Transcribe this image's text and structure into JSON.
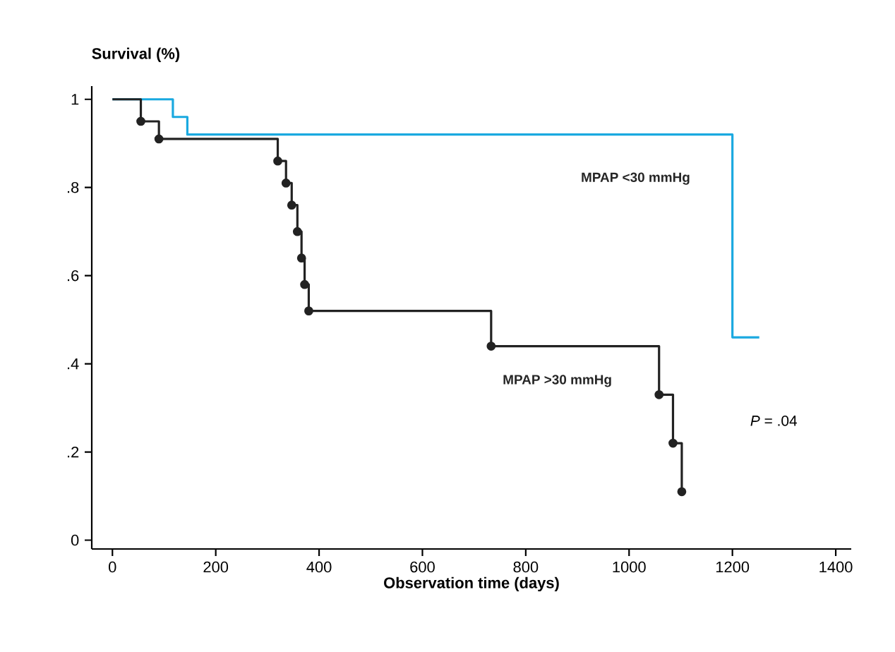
{
  "chart_data": {
    "type": "step",
    "ylabel": "Survival (%)",
    "xlabel": "Observation time (days)",
    "xlim": [
      -40,
      1430
    ],
    "ylim": [
      -0.02,
      1.03
    ],
    "xticks": [
      0,
      200,
      400,
      600,
      800,
      1000,
      1200,
      1400
    ],
    "yticks": [
      {
        "value": 0,
        "label": "0"
      },
      {
        "value": 0.2,
        "label": ".2"
      },
      {
        "value": 0.4,
        "label": ".4"
      },
      {
        "value": 0.6,
        "label": ".6"
      },
      {
        "value": 0.8,
        "label": ".8"
      },
      {
        "value": 1,
        "label": "1"
      }
    ],
    "annotations": [
      "*P* = .04"
    ],
    "grid": false,
    "line_style": "solid",
    "series": [
      {
        "name": "MPAP <30 mmHg",
        "color": "#1aa9e0",
        "marker": "none",
        "x": [
          0,
          117,
          145,
          1200,
          1252
        ],
        "values": [
          1,
          0.96,
          0.92,
          0.46,
          0.46
        ]
      },
      {
        "name": "MPAP >30 mmHg",
        "color": "#222222",
        "marker": "circle",
        "x": [
          0,
          55,
          90,
          320,
          336,
          347,
          358,
          366,
          372,
          380,
          733,
          1058,
          1085,
          1102
        ],
        "values": [
          1,
          0.95,
          0.91,
          0.86,
          0.81,
          0.76,
          0.7,
          0.64,
          0.58,
          0.52,
          0.44,
          0.33,
          0.22,
          0.11
        ]
      }
    ]
  }
}
